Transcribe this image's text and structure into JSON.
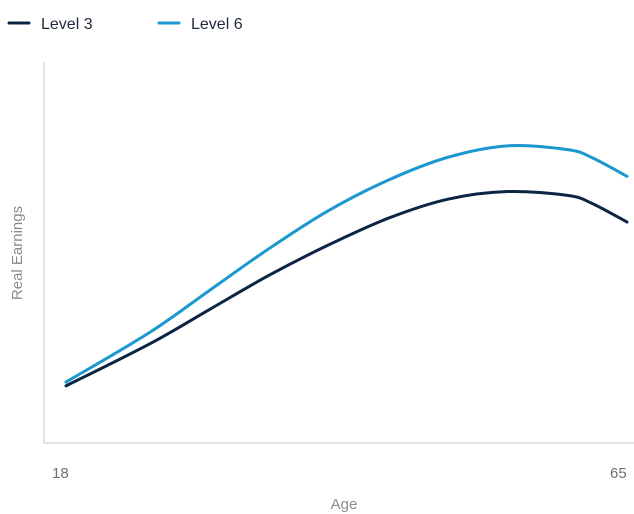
{
  "chart_data": {
    "type": "line",
    "title": "",
    "xlabel": "Age",
    "ylabel": "Real Earnings",
    "x_ticks": [
      "18",
      "65"
    ],
    "xlim": [
      18,
      65
    ],
    "ylim": [
      0,
      1
    ],
    "y_ticks_shown": false,
    "grid": false,
    "legend_position": "top-left",
    "x": [
      18,
      25,
      30,
      35,
      40,
      45,
      50,
      55,
      60,
      62,
      65
    ],
    "series": [
      {
        "name": "Level 3",
        "color": "#0d2544",
        "values": [
          0.15,
          0.26,
          0.35,
          0.44,
          0.52,
          0.59,
          0.64,
          0.66,
          0.65,
          0.63,
          0.58
        ]
      },
      {
        "name": "Level 6",
        "color": "#1b98d0",
        "values": [
          0.16,
          0.29,
          0.4,
          0.51,
          0.61,
          0.69,
          0.75,
          0.78,
          0.77,
          0.75,
          0.7
        ]
      }
    ]
  }
}
